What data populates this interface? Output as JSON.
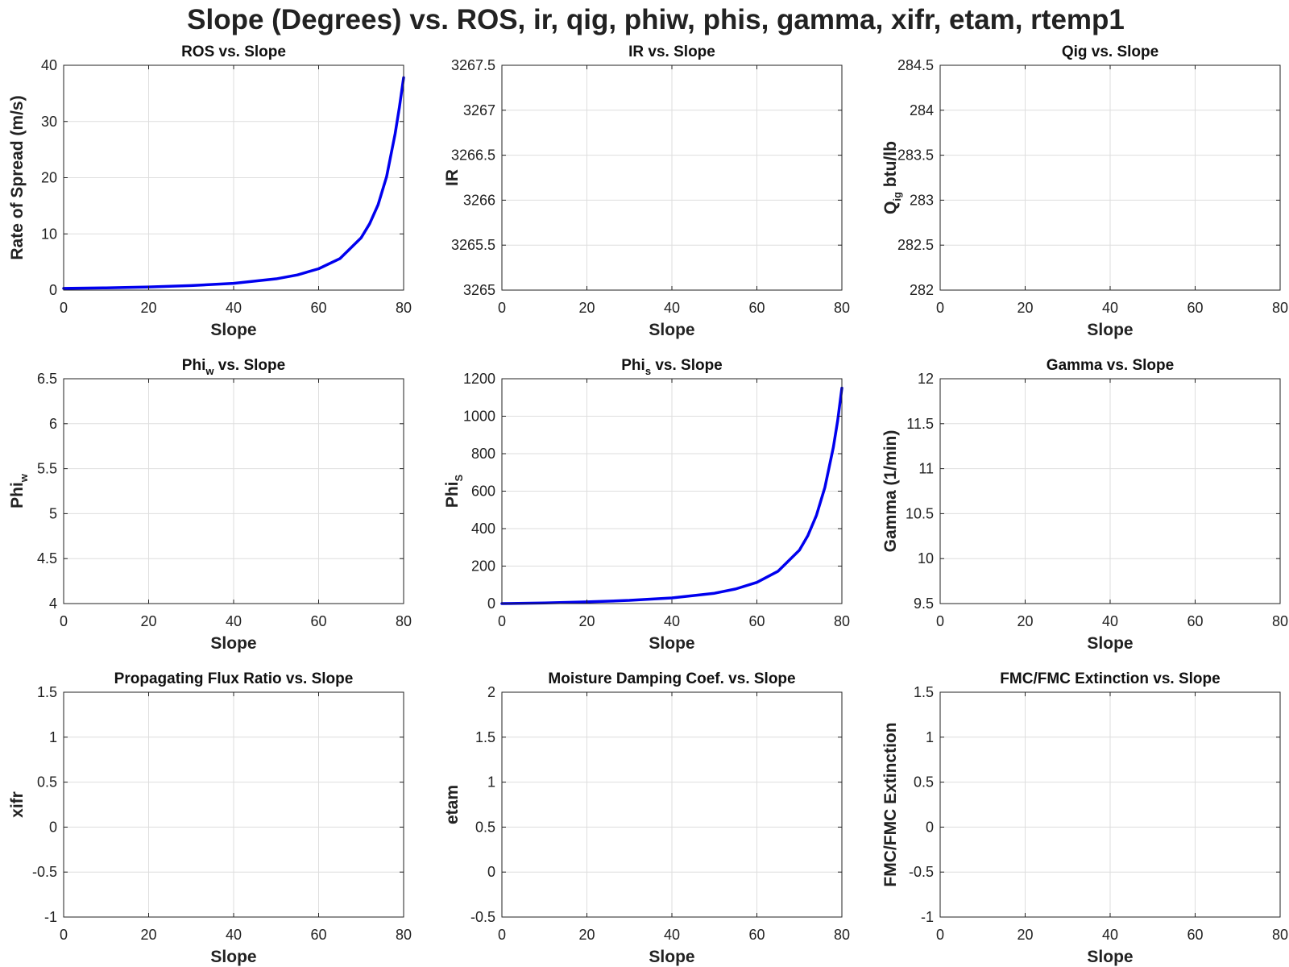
{
  "figure": {
    "title": "Slope (Degrees) vs. ROS, ir, qig, phiw, phis, gamma, xifr, etam, rtemp1",
    "line_color": "#0000ee"
  },
  "chart_data": [
    {
      "type": "line",
      "title": "ROS vs. Slope",
      "xlabel": "Slope",
      "ylabel": "Rate of Spread (m/s)",
      "xlim": [
        0,
        80
      ],
      "ylim": [
        0,
        40
      ],
      "xticks": [
        0,
        20,
        40,
        60,
        80
      ],
      "yticks": [
        0,
        10,
        20,
        30,
        40
      ],
      "grid": true,
      "series": [
        {
          "x": [
            0,
            10,
            20,
            30,
            40,
            50,
            55,
            60,
            65,
            70,
            72,
            74,
            76,
            78,
            79,
            80
          ],
          "y": [
            0.3,
            0.4,
            0.55,
            0.8,
            1.2,
            2.0,
            2.7,
            3.8,
            5.6,
            9.3,
            11.8,
            15.2,
            20.2,
            27.8,
            32.5,
            37.8
          ]
        }
      ]
    },
    {
      "type": "line",
      "title": "IR vs. Slope",
      "xlabel": "Slope",
      "ylabel": "IR",
      "xlim": [
        0,
        80
      ],
      "ylim": [
        3265,
        3267.5
      ],
      "xticks": [
        0,
        20,
        40,
        60,
        80
      ],
      "yticks": [
        "3265",
        "3265.5",
        "3266",
        "3266.5",
        "3267",
        "3267.5"
      ],
      "grid": true,
      "series": []
    },
    {
      "type": "line",
      "title": "Qig vs. Slope",
      "xlabel": "Slope",
      "ylabel": "Q",
      "ylabel_sub": "ig",
      "ylabel_suffix": " btu/lb",
      "xlim": [
        0,
        80
      ],
      "ylim": [
        282,
        284.5
      ],
      "xticks": [
        0,
        20,
        40,
        60,
        80
      ],
      "yticks": [
        "282",
        "282.5",
        "283",
        "283.5",
        "284",
        "284.5"
      ],
      "grid": true,
      "series": []
    },
    {
      "type": "line",
      "title": "Phi",
      "title_sub": "w",
      "title_suffix": " vs. Slope",
      "xlabel": "Slope",
      "ylabel": "Phi",
      "ylabel_sub": "w",
      "xlim": [
        0,
        80
      ],
      "ylim": [
        4,
        6.5
      ],
      "xticks": [
        0,
        20,
        40,
        60,
        80
      ],
      "yticks": [
        "4",
        "4.5",
        "5",
        "5.5",
        "6",
        "6.5"
      ],
      "grid": true,
      "series": []
    },
    {
      "type": "line",
      "title": "Phi",
      "title_sub": "s",
      "title_suffix": " vs. Slope",
      "xlabel": "Slope",
      "ylabel": "Phi",
      "ylabel_sub": "S",
      "xlim": [
        0,
        80
      ],
      "ylim": [
        0,
        1200
      ],
      "xticks": [
        0,
        20,
        40,
        60,
        80
      ],
      "yticks": [
        0,
        200,
        400,
        600,
        800,
        1000,
        1200
      ],
      "grid": true,
      "series": [
        {
          "x": [
            0,
            10,
            20,
            30,
            40,
            50,
            55,
            60,
            65,
            70,
            72,
            74,
            76,
            78,
            79,
            80
          ],
          "y": [
            0,
            3,
            9,
            17,
            30,
            55,
            78,
            113,
            173,
            285,
            363,
            470,
            620,
            835,
            975,
            1150
          ]
        }
      ]
    },
    {
      "type": "line",
      "title": "Gamma vs. Slope",
      "xlabel": "Slope",
      "ylabel": "Gamma (1/min)",
      "xlim": [
        0,
        80
      ],
      "ylim": [
        9.5,
        12
      ],
      "xticks": [
        0,
        20,
        40,
        60,
        80
      ],
      "yticks": [
        "9.5",
        "10",
        "10.5",
        "11",
        "11.5",
        "12"
      ],
      "grid": true,
      "series": []
    },
    {
      "type": "line",
      "title": "Propagating Flux Ratio vs. Slope",
      "xlabel": "Slope",
      "ylabel": "xifr",
      "xlim": [
        0,
        80
      ],
      "ylim": [
        -1,
        1.5
      ],
      "xticks": [
        0,
        20,
        40,
        60,
        80
      ],
      "yticks": [
        "-1",
        "-0.5",
        "0",
        "0.5",
        "1",
        "1.5"
      ],
      "grid": true,
      "series": []
    },
    {
      "type": "line",
      "title": "Moisture Damping Coef. vs. Slope",
      "xlabel": "Slope",
      "ylabel": "etam",
      "xlim": [
        0,
        80
      ],
      "ylim": [
        -0.5,
        2
      ],
      "xticks": [
        0,
        20,
        40,
        60,
        80
      ],
      "yticks": [
        "-0.5",
        "0",
        "0.5",
        "1",
        "1.5",
        "2"
      ],
      "grid": true,
      "series": []
    },
    {
      "type": "line",
      "title": "FMC/FMC Extinction vs. Slope",
      "xlabel": "Slope",
      "ylabel": "FMC/FMC Extinction",
      "xlim": [
        0,
        80
      ],
      "ylim": [
        -1,
        1.5
      ],
      "xticks": [
        0,
        20,
        40,
        60,
        80
      ],
      "yticks": [
        "-1",
        "-0.5",
        "0",
        "0.5",
        "1",
        "1.5"
      ],
      "grid": true,
      "series": []
    }
  ]
}
